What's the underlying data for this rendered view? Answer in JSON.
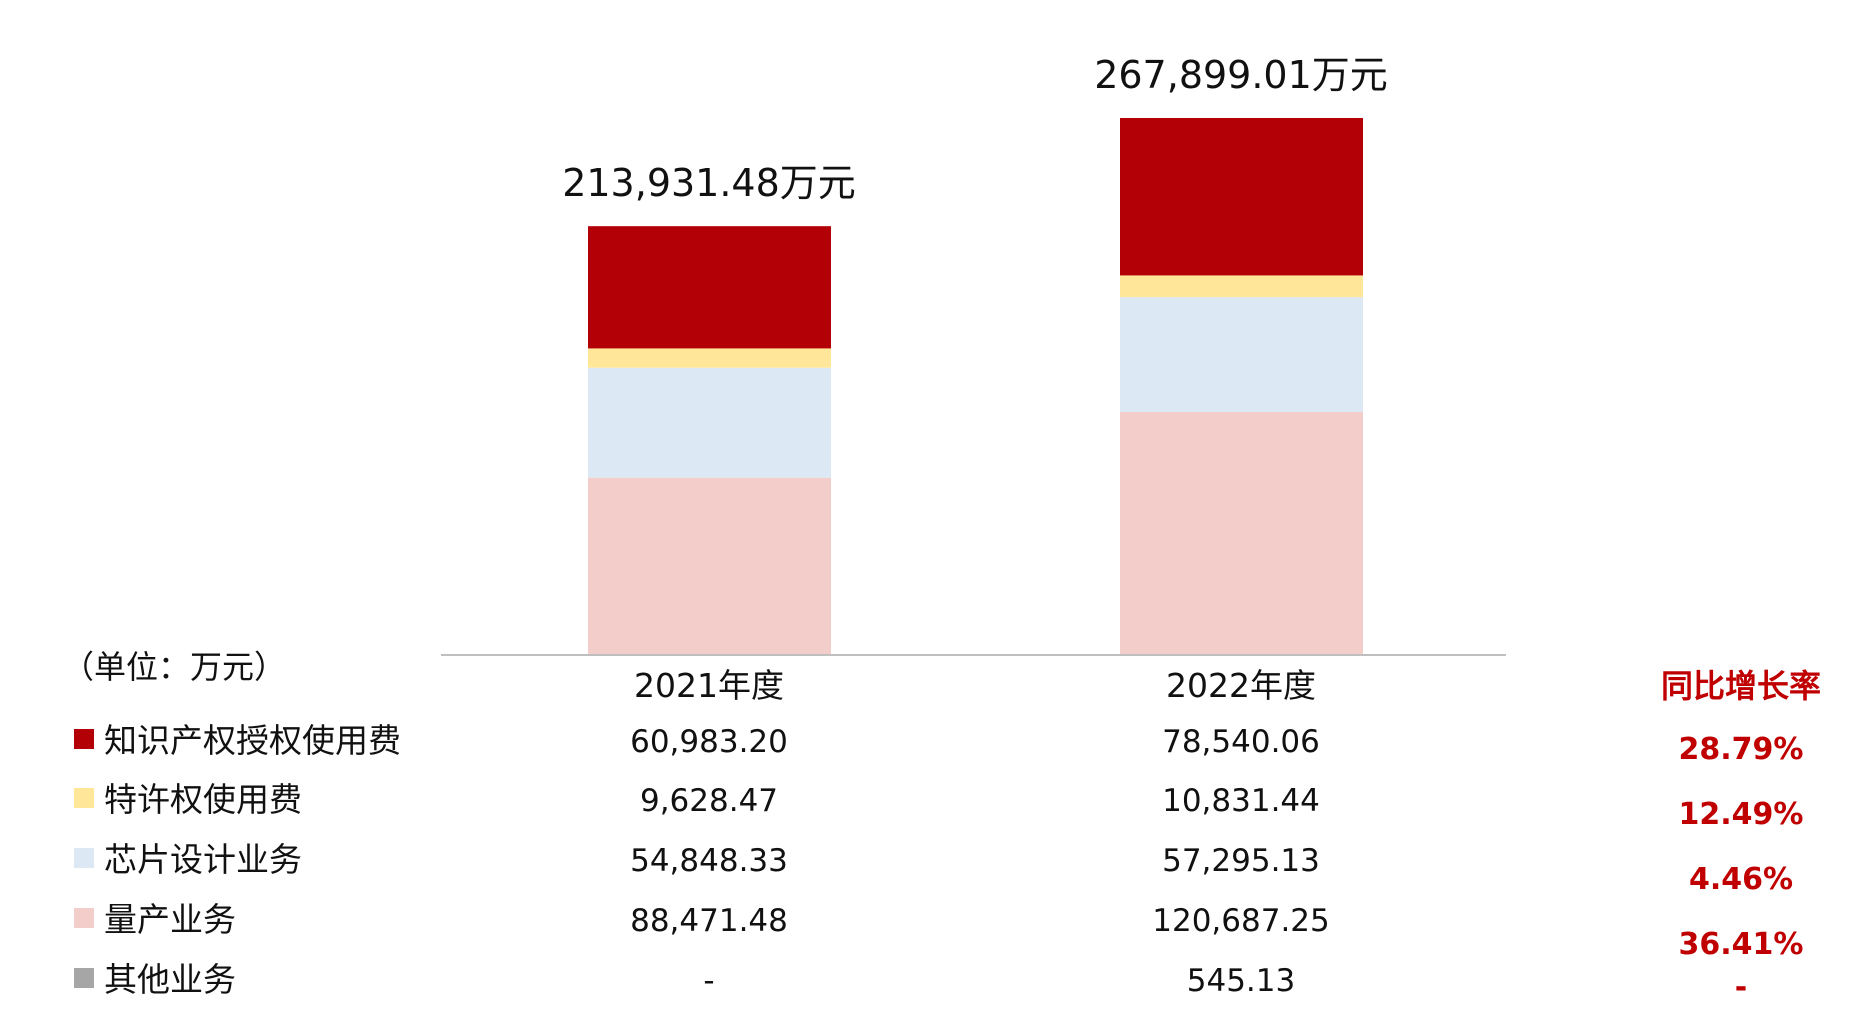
{
  "colors": {
    "ip_license": "#b30007",
    "royalty": "#ffe699",
    "chip_design": "#dde8f5",
    "mass_production": "#f2cdc9",
    "other": "#a6a6a6",
    "growth_text": "#c00000",
    "axis": "#bfbfbf"
  },
  "chart_data": {
    "type": "bar",
    "stacked": true,
    "unit_label": "（单位：万元）",
    "growth_header": "同比增长率",
    "categories": [
      "2021年度",
      "2022年度"
    ],
    "totals": [
      213931.48,
      267899.01
    ],
    "total_labels": [
      "213,931.48万元",
      "267,899.01万元"
    ],
    "ylim": [
      0,
      280000
    ],
    "series": [
      {
        "name": "知识产权授权使用费",
        "values": [
          60983.2,
          78540.06
        ],
        "value_labels": [
          "60,983.20",
          "78,540.06"
        ],
        "growth": "28.79%",
        "color_key": "ip_license"
      },
      {
        "name": "特许权使用费",
        "values": [
          9628.47,
          10831.44
        ],
        "value_labels": [
          "9,628.47",
          "10,831.44"
        ],
        "growth": "12.49%",
        "color_key": "royalty"
      },
      {
        "name": "芯片设计业务",
        "values": [
          54848.33,
          57295.13
        ],
        "value_labels": [
          "54,848.33",
          "57,295.13"
        ],
        "growth": "4.46%",
        "color_key": "chip_design"
      },
      {
        "name": "量产业务",
        "values": [
          88471.48,
          120687.25
        ],
        "value_labels": [
          "88,471.48",
          "120,687.25"
        ],
        "growth": "36.41%",
        "color_key": "mass_production"
      },
      {
        "name": "其他业务",
        "values": [
          0,
          545.13
        ],
        "value_labels": [
          "-",
          "545.13"
        ],
        "growth": "-",
        "color_key": "other"
      }
    ]
  }
}
